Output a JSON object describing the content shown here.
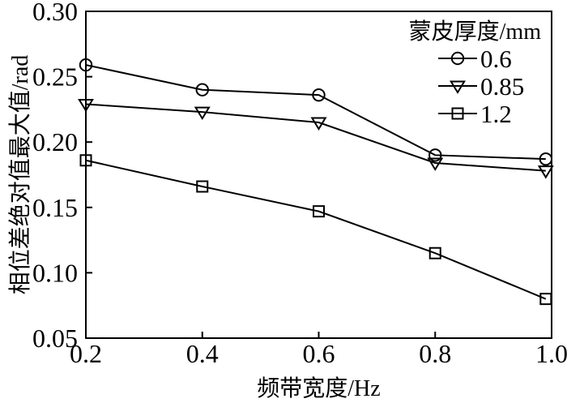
{
  "colors": {
    "foreground": "#000000",
    "background": "#ffffff"
  },
  "chart_data": {
    "type": "line",
    "title": "",
    "xlabel": "频带宽度/Hz",
    "ylabel": "相位差绝对值最大值/rad",
    "legend_title": "蒙皮厚度/mm",
    "legend_position": "top-right",
    "grid": false,
    "xlim": [
      0.2,
      1.0
    ],
    "ylim": [
      0.05,
      0.3
    ],
    "xticks": [
      0.2,
      0.4,
      0.6,
      0.8,
      1.0
    ],
    "xtick_labels": [
      "0.2",
      "0.4",
      "0.6",
      "0.8",
      "1.0"
    ],
    "yticks": [
      0.05,
      0.1,
      0.15,
      0.2,
      0.25,
      0.3
    ],
    "ytick_labels": [
      "0.05",
      "0.10",
      "0.15",
      "0.20",
      "0.25",
      "0.30"
    ],
    "x": [
      0.2,
      0.4,
      0.6,
      0.8,
      0.99
    ],
    "series": [
      {
        "name": "0.6",
        "marker": "circle",
        "values": [
          0.259,
          0.24,
          0.236,
          0.19,
          0.187
        ]
      },
      {
        "name": "0.85",
        "marker": "triangle-down",
        "values": [
          0.229,
          0.223,
          0.215,
          0.184,
          0.178
        ]
      },
      {
        "name": "1.2",
        "marker": "square",
        "values": [
          0.186,
          0.166,
          0.147,
          0.115,
          0.08
        ]
      }
    ]
  }
}
